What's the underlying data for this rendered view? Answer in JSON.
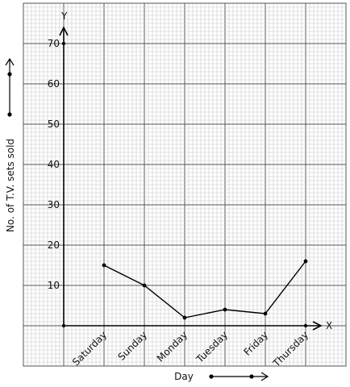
{
  "chart_data": {
    "type": "line",
    "title": "",
    "xlabel": "Day",
    "ylabel": "No. of T.V. sets sold",
    "x_axis_letter": "X",
    "y_axis_letter": "Y",
    "categories": [
      "Saturday",
      "Sunday",
      "Monday",
      "Tuesday",
      "Friday",
      "Thursday"
    ],
    "series": [
      {
        "values": [
          15,
          10,
          2,
          4,
          3,
          16
        ]
      }
    ],
    "y_ticks": [
      "10",
      "20",
      "30",
      "40",
      "50",
      "60",
      "70"
    ],
    "ylim": [
      -10,
      80
    ],
    "grid": true,
    "colors": {
      "grid_minor": "#c8c8c8",
      "grid_major": "#555555",
      "line": "#000000"
    }
  }
}
